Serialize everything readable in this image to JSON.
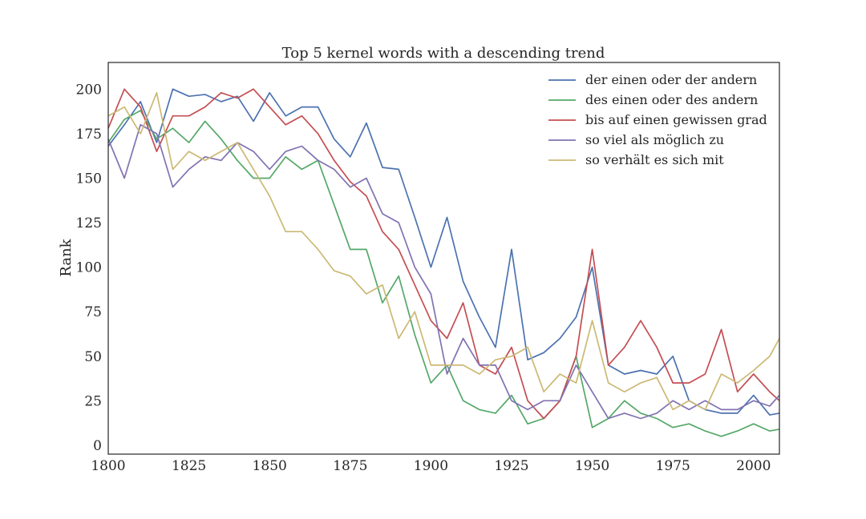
{
  "chart_data": {
    "type": "line",
    "title": "Top 5 kernel words with a descending trend",
    "xlabel": "",
    "ylabel": "Rank",
    "xlim": [
      1800,
      2008
    ],
    "ylim": [
      -5,
      215
    ],
    "xticks": [
      1800,
      1825,
      1850,
      1875,
      1900,
      1925,
      1950,
      1975,
      2000
    ],
    "yticks": [
      0,
      25,
      50,
      75,
      100,
      125,
      150,
      175,
      200
    ],
    "grid": false,
    "legend_position": "top-right",
    "x": [
      1800,
      1805,
      1810,
      1815,
      1820,
      1825,
      1830,
      1835,
      1840,
      1845,
      1850,
      1855,
      1860,
      1865,
      1870,
      1875,
      1880,
      1885,
      1890,
      1895,
      1900,
      1905,
      1910,
      1915,
      1920,
      1925,
      1930,
      1935,
      1940,
      1945,
      1950,
      1955,
      1960,
      1965,
      1970,
      1975,
      1980,
      1985,
      1990,
      1995,
      2000,
      2005,
      2008
    ],
    "series": [
      {
        "name": "der einen oder der andern",
        "color": "#4c72b0",
        "values": [
          168,
          180,
          193,
          170,
          200,
          196,
          197,
          193,
          196,
          182,
          198,
          185,
          190,
          190,
          172,
          162,
          181,
          156,
          155,
          128,
          100,
          128,
          92,
          72,
          55,
          110,
          48,
          52,
          60,
          72,
          100,
          45,
          40,
          42,
          40,
          50,
          25,
          20,
          18,
          18,
          28,
          17,
          18
        ]
      },
      {
        "name": "des einen oder des andern",
        "color": "#55a868",
        "values": [
          170,
          183,
          188,
          172,
          178,
          170,
          182,
          172,
          160,
          150,
          150,
          162,
          155,
          160,
          135,
          110,
          110,
          80,
          95,
          62,
          35,
          45,
          25,
          20,
          18,
          28,
          12,
          15,
          25,
          50,
          10,
          15,
          25,
          18,
          15,
          10,
          12,
          8,
          5,
          8,
          12,
          8,
          9
        ]
      },
      {
        "name": "bis auf einen gewissen grad",
        "color": "#c44e52",
        "values": [
          178,
          200,
          190,
          165,
          185,
          185,
          190,
          198,
          195,
          200,
          190,
          180,
          185,
          175,
          160,
          148,
          140,
          120,
          110,
          90,
          70,
          60,
          80,
          45,
          40,
          55,
          25,
          15,
          25,
          50,
          110,
          45,
          55,
          70,
          55,
          35,
          35,
          40,
          65,
          30,
          40,
          30,
          25
        ]
      },
      {
        "name": "so viel als möglich zu",
        "color": "#8172b2",
        "values": [
          172,
          150,
          180,
          175,
          145,
          155,
          162,
          160,
          170,
          165,
          155,
          165,
          168,
          160,
          155,
          145,
          150,
          130,
          125,
          100,
          85,
          40,
          60,
          45,
          45,
          25,
          20,
          25,
          25,
          45,
          30,
          15,
          18,
          15,
          18,
          25,
          20,
          25,
          20,
          20,
          25,
          22,
          28
        ]
      },
      {
        "name": "so verhält es sich mit",
        "color": "#ccb974",
        "values": [
          185,
          190,
          175,
          198,
          155,
          165,
          160,
          165,
          170,
          155,
          140,
          120,
          120,
          110,
          98,
          95,
          85,
          90,
          60,
          75,
          45,
          45,
          45,
          40,
          48,
          50,
          55,
          30,
          40,
          35,
          70,
          35,
          30,
          35,
          38,
          20,
          25,
          20,
          40,
          35,
          42,
          50,
          60
        ]
      }
    ]
  }
}
